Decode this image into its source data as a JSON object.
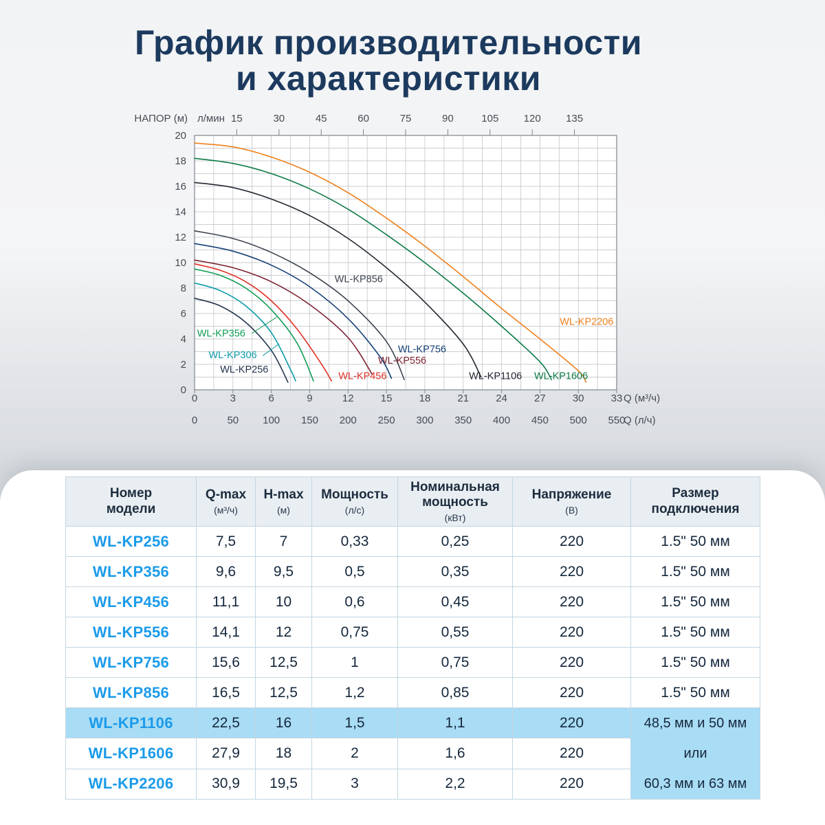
{
  "title": {
    "line1": "График производительности",
    "line2": "и характеристики"
  },
  "chart_data": {
    "type": "line",
    "head_axis_label": "НАПОР (м)",
    "top_axis_label": "л/мин",
    "top_axis_ticks": [
      15,
      30,
      45,
      60,
      75,
      90,
      105,
      120,
      135
    ],
    "y_ticks": [
      0,
      2,
      4,
      6,
      8,
      10,
      12,
      14,
      16,
      18,
      20
    ],
    "x_ticks_m3h": [
      0,
      3,
      6,
      9,
      12,
      15,
      18,
      21,
      24,
      27,
      30,
      33
    ],
    "x_axis_m3h_label": "Q (м³/ч)",
    "x_ticks_lh": [
      0,
      50,
      100,
      150,
      200,
      250,
      300,
      350,
      400,
      450,
      500,
      550
    ],
    "x_axis_lh_label": "Q (л/ч)",
    "xlim": [
      0,
      33
    ],
    "ylim": [
      0,
      20
    ],
    "x_minor_step": 1.5,
    "y_minor_step": 1,
    "grid": true,
    "series": [
      {
        "name": "WL-KP256",
        "color": "#25354d",
        "label": {
          "x": 2.0,
          "y": 1.35
        },
        "points": [
          [
            0,
            7.2
          ],
          [
            2,
            6.6
          ],
          [
            4,
            5.3
          ],
          [
            6,
            3.1
          ],
          [
            7.3,
            0.6
          ]
        ]
      },
      {
        "name": "WL-KP306",
        "color": "#0a9aa8",
        "label": {
          "x": 1.1,
          "y": 2.5
        },
        "leader": [
          [
            5.35,
            2.7
          ],
          [
            6.6,
            3.6
          ]
        ],
        "points": [
          [
            0,
            8.4
          ],
          [
            2,
            7.8
          ],
          [
            4,
            6.6
          ],
          [
            6,
            4.5
          ],
          [
            7.5,
            1.6
          ],
          [
            7.9,
            0.7
          ]
        ]
      },
      {
        "name": "WL-KP356",
        "color": "#0e9c52",
        "label": {
          "x": 0.2,
          "y": 4.2
        },
        "leader": [
          [
            4.5,
            4.45
          ],
          [
            6.4,
            5.7
          ]
        ],
        "points": [
          [
            0,
            9.5
          ],
          [
            2,
            9.0
          ],
          [
            4,
            8.0
          ],
          [
            6,
            6.3
          ],
          [
            8,
            3.7
          ],
          [
            9.3,
            0.7
          ]
        ]
      },
      {
        "name": "WL-KP456",
        "color": "#e03127",
        "label": {
          "x": 11.25,
          "y": 0.85
        },
        "points": [
          [
            0,
            9.9
          ],
          [
            2,
            9.4
          ],
          [
            4,
            8.5
          ],
          [
            6,
            7.0
          ],
          [
            8,
            4.8
          ],
          [
            10,
            1.9
          ],
          [
            10.7,
            0.7
          ]
        ]
      },
      {
        "name": "WL-KP556",
        "color": "#7c2130",
        "label": {
          "x": 14.35,
          "y": 2.05
        },
        "points": [
          [
            0,
            10.2
          ],
          [
            3,
            9.6
          ],
          [
            6,
            8.5
          ],
          [
            9,
            6.7
          ],
          [
            12,
            4.1
          ],
          [
            13.9,
            1.2
          ]
        ]
      },
      {
        "name": "WL-KP756",
        "color": "#153f77",
        "label": {
          "x": 15.9,
          "y": 2.95
        },
        "points": [
          [
            0,
            11.5
          ],
          [
            3,
            10.9
          ],
          [
            6,
            9.8
          ],
          [
            9,
            8.1
          ],
          [
            12,
            5.6
          ],
          [
            14.5,
            2.6
          ],
          [
            15.4,
            0.9
          ]
        ]
      },
      {
        "name": "WL-KP856",
        "color": "#3c434e",
        "label": {
          "x": 10.95,
          "y": 8.45
        },
        "points": [
          [
            0,
            12.5
          ],
          [
            3,
            11.9
          ],
          [
            6,
            10.8
          ],
          [
            9,
            9.2
          ],
          [
            12,
            7.0
          ],
          [
            15,
            3.8
          ],
          [
            16.4,
            0.8
          ]
        ]
      },
      {
        "name": "WL-KP1106",
        "color": "#23272f",
        "label": {
          "x": 21.45,
          "y": 0.85
        },
        "points": [
          [
            0,
            16.3
          ],
          [
            3,
            15.9
          ],
          [
            6,
            15.0
          ],
          [
            9,
            13.7
          ],
          [
            12,
            11.9
          ],
          [
            15,
            9.6
          ],
          [
            18,
            6.9
          ],
          [
            21,
            3.6
          ],
          [
            22.4,
            1.0
          ]
        ]
      },
      {
        "name": "WL-KP1606",
        "color": "#0c7a45",
        "label": {
          "x": 26.55,
          "y": 0.85
        },
        "points": [
          [
            0,
            18.2
          ],
          [
            3,
            17.8
          ],
          [
            6,
            17.0
          ],
          [
            9,
            15.8
          ],
          [
            12,
            14.2
          ],
          [
            15,
            12.2
          ],
          [
            18,
            10.0
          ],
          [
            21,
            7.6
          ],
          [
            24,
            5.0
          ],
          [
            27,
            2.2
          ],
          [
            27.9,
            0.8
          ]
        ]
      },
      {
        "name": "WL-KP2206",
        "color": "#ef7f1a",
        "label": {
          "x": 28.55,
          "y": 5.1
        },
        "points": [
          [
            0,
            19.4
          ],
          [
            3,
            19.1
          ],
          [
            6,
            18.3
          ],
          [
            9,
            17.1
          ],
          [
            12,
            15.5
          ],
          [
            15,
            13.5
          ],
          [
            18,
            11.3
          ],
          [
            21,
            8.9
          ],
          [
            24,
            6.4
          ],
          [
            27,
            4.0
          ],
          [
            30,
            1.5
          ],
          [
            30.6,
            0.6
          ]
        ]
      }
    ]
  },
  "table": {
    "columns": [
      {
        "title": "Номер\nмодели",
        "sub": ""
      },
      {
        "title": "Q-max",
        "sub": "(м³/ч)"
      },
      {
        "title": "H-max",
        "sub": "(м)"
      },
      {
        "title": "Мощность",
        "sub": "(л/с)"
      },
      {
        "title": "Номинальная\nмощность",
        "sub": "(кВт)"
      },
      {
        "title": "Напряжение",
        "sub": "(В)"
      },
      {
        "title": "Размер\nподключения",
        "sub": ""
      }
    ],
    "rows": [
      {
        "model": "WL-KP256",
        "qmax": "7,5",
        "hmax": "7",
        "power": "0,33",
        "nominal": "0,25",
        "voltage": "220",
        "size": "1.5\" 50 мм",
        "highlight": false
      },
      {
        "model": "WL-KP356",
        "qmax": "9,6",
        "hmax": "9,5",
        "power": "0,5",
        "nominal": "0,35",
        "voltage": "220",
        "size": "1.5\" 50 мм",
        "highlight": false
      },
      {
        "model": "WL-KP456",
        "qmax": "11,1",
        "hmax": "10",
        "power": "0,6",
        "nominal": "0,45",
        "voltage": "220",
        "size": "1.5\" 50 мм",
        "highlight": false
      },
      {
        "model": "WL-KP556",
        "qmax": "14,1",
        "hmax": "12",
        "power": "0,75",
        "nominal": "0,55",
        "voltage": "220",
        "size": "1.5\" 50 мм",
        "highlight": false
      },
      {
        "model": "WL-KP756",
        "qmax": "15,6",
        "hmax": "12,5",
        "power": "1",
        "nominal": "0,75",
        "voltage": "220",
        "size": "1.5\" 50 мм",
        "highlight": false
      },
      {
        "model": "WL-KP856",
        "qmax": "16,5",
        "hmax": "12,5",
        "power": "1,2",
        "nominal": "0,85",
        "voltage": "220",
        "size": "1.5\" 50 мм",
        "highlight": false
      },
      {
        "model": "WL-KP1106",
        "qmax": "22,5",
        "hmax": "16",
        "power": "1,5",
        "nominal": "1,1",
        "voltage": "220",
        "size": "merged",
        "highlight": true
      },
      {
        "model": "WL-KP1606",
        "qmax": "27,9",
        "hmax": "18",
        "power": "2",
        "nominal": "1,6",
        "voltage": "220",
        "size": "merged",
        "highlight": false
      },
      {
        "model": "WL-KP2206",
        "qmax": "30,9",
        "hmax": "19,5",
        "power": "3",
        "nominal": "2,2",
        "voltage": "220",
        "size": "merged",
        "highlight": false
      }
    ],
    "merged_size": {
      "lines": [
        "48,5 мм и 50 мм",
        "или",
        "60,3 мм и 63 мм"
      ]
    },
    "colors": {
      "model_text": "#1b9bea",
      "highlight_bg": "#a9dcf5",
      "header_bg": "#e9eef2",
      "border": "#c2d6e2"
    }
  }
}
